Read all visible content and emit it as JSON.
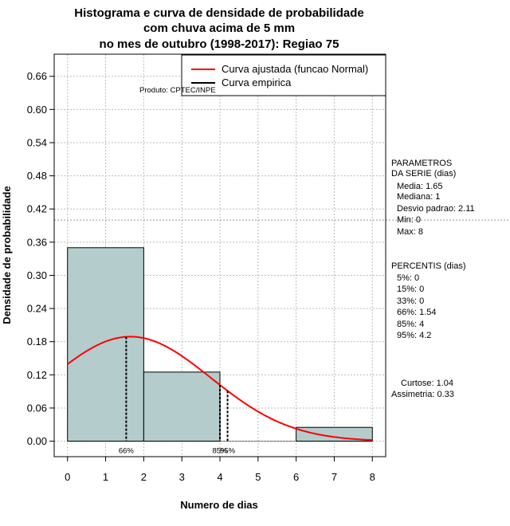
{
  "chart_data": {
    "type": "bar",
    "title_lines": [
      "Histograma e curva de densidade de probabilidade",
      "com chuva acima de 5 mm",
      "no mes de outubro (1998-2017): Regiao 75"
    ],
    "xlabel": "Numero de dias",
    "ylabel": "Densidade de probabilidade",
    "xlim": [
      -0.35,
      8.35
    ],
    "ylim": [
      -0.028,
      0.7
    ],
    "x_ticks": [
      "0",
      "1",
      "2",
      "3",
      "4",
      "5",
      "6",
      "7",
      "8"
    ],
    "y_ticks": [
      "0.00",
      "0.06",
      "0.12",
      "0.18",
      "0.24",
      "0.30",
      "0.36",
      "0.42",
      "0.48",
      "0.54",
      "0.60",
      "0.66"
    ],
    "bins": [
      {
        "x0": 0,
        "x1": 2,
        "value": 0.35
      },
      {
        "x0": 2,
        "x1": 4,
        "value": 0.125
      },
      {
        "x0": 4,
        "x1": 6,
        "value": 0.0
      },
      {
        "x0": 6,
        "x1": 8,
        "value": 0.025
      }
    ],
    "bar_color": "#b5cccc",
    "curve_color": "#ff0000",
    "reference_line_y": 0.4,
    "normal_curve": {
      "mean": 1.65,
      "sd": 2.11,
      "from": 0,
      "to": 8
    },
    "percentile_markers": [
      {
        "x": 1.54,
        "label": "66%"
      },
      {
        "x": 4.0,
        "label": "85%"
      },
      {
        "x": 4.2,
        "label": "95%"
      }
    ],
    "legend": {
      "placement": "top-right",
      "entries": [
        {
          "label": "Curva ajustada (funcao Normal)",
          "color": "#ff0000"
        },
        {
          "label": "Curva empirica",
          "color": "#000000"
        }
      ]
    },
    "product_label": "Produto: CPTEC/INPE",
    "side_panel": {
      "params_title": [
        "PARAMETROS",
        "DA SERIE (dias)"
      ],
      "params": [
        "Media: 1.65",
        "Mediana: 1",
        "Desvio padrao: 2.11",
        "Min: 0",
        "Max: 8"
      ],
      "percentis_title": "PERCENTIS (dias)",
      "percentis": [
        "5%: 0",
        "15%: 0",
        "33%: 0",
        "66%: 1.54",
        "85%: 4",
        "95%: 4.2"
      ],
      "stats": [
        "Curtose: 1.04",
        "Assimetria: 0.33"
      ]
    }
  }
}
